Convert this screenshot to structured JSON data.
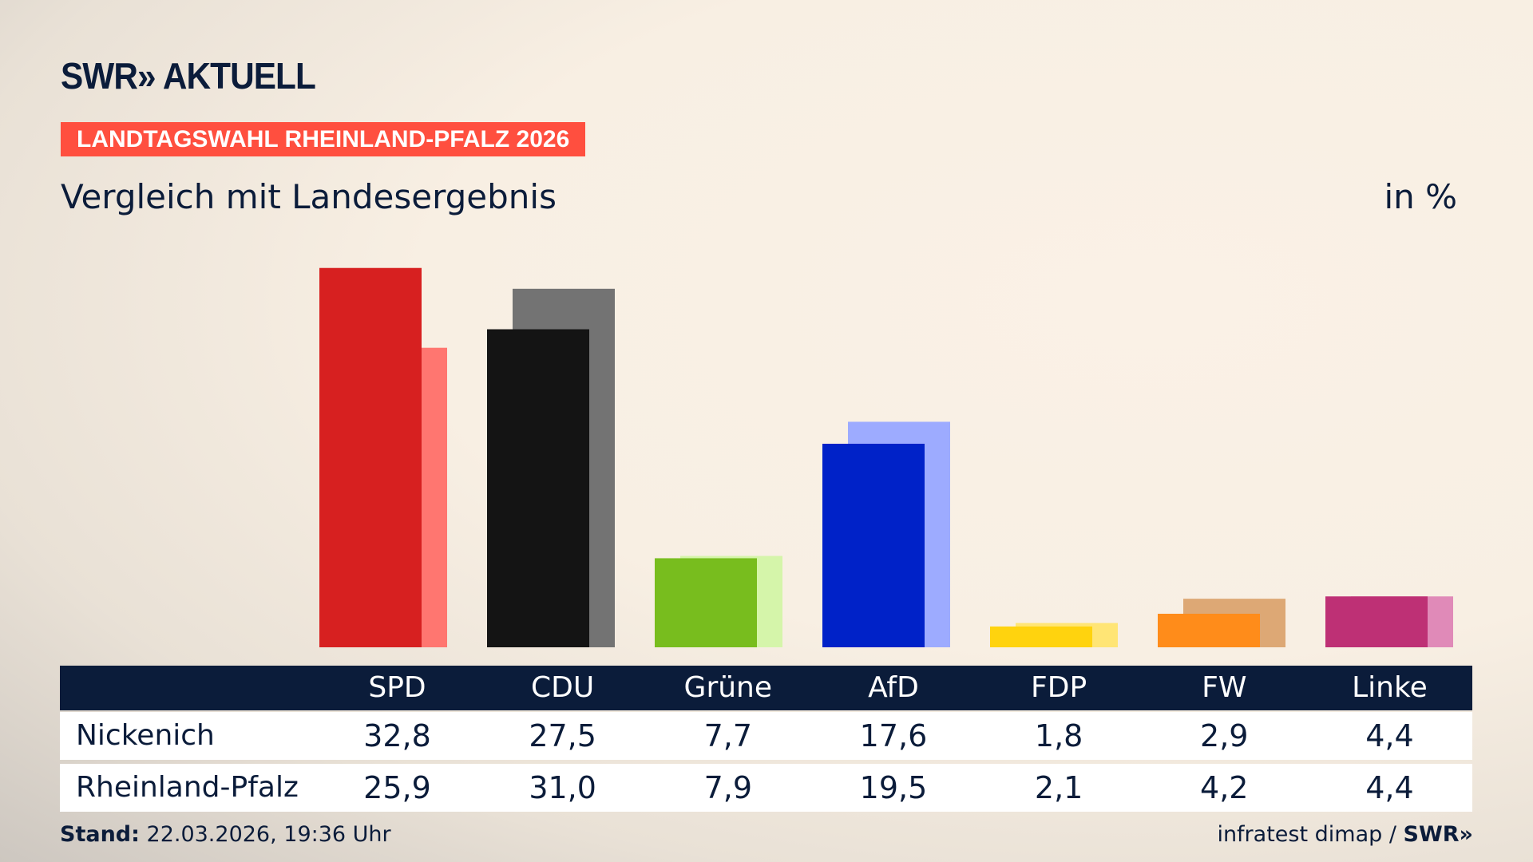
{
  "header": {
    "logo": "SWR» AKTUELL",
    "banner": "LANDTAGSWAHL RHEINLAND-PFALZ 2026",
    "subtitle": "Vergleich mit Landesergebnis",
    "unit": "in %"
  },
  "chart_data": {
    "type": "bar",
    "categories": [
      "SPD",
      "CDU",
      "Grüne",
      "AfD",
      "FDP",
      "FW",
      "Linke"
    ],
    "series": [
      {
        "name": "Nickenich",
        "values": [
          32.8,
          27.5,
          7.7,
          17.6,
          1.8,
          2.9,
          4.4
        ]
      },
      {
        "name": "Rheinland-Pfalz",
        "values": [
          25.9,
          31.0,
          7.9,
          19.5,
          2.1,
          4.2,
          4.4
        ]
      }
    ],
    "colors": {
      "front": [
        "#d72020",
        "#141414",
        "#78bd1e",
        "#0022c8",
        "#ffd30e",
        "#ff8c1a",
        "#be3075"
      ],
      "back": [
        "#ff7670",
        "#737373",
        "#d5f5aa",
        "#9dabff",
        "#ffe575",
        "#dda875",
        "#e08ab8"
      ]
    },
    "grid": false
  },
  "table": {
    "headers": [
      "SPD",
      "CDU",
      "Grüne",
      "AfD",
      "FDP",
      "FW",
      "Linke"
    ],
    "rows": [
      {
        "label": "Nickenich",
        "values": [
          "32,8",
          "27,5",
          "7,7",
          "17,6",
          "1,8",
          "2,9",
          "4,4"
        ]
      },
      {
        "label": "Rheinland-Pfalz",
        "values": [
          "25,9",
          "31,0",
          "7,9",
          "19,5",
          "2,1",
          "4,2",
          "4,4"
        ]
      }
    ]
  },
  "footer": {
    "stand_label": "Stand:",
    "stand_value": "22.03.2026, 19:36 Uhr",
    "source": "infratest dimap / ",
    "source_logo": "SWR»"
  }
}
